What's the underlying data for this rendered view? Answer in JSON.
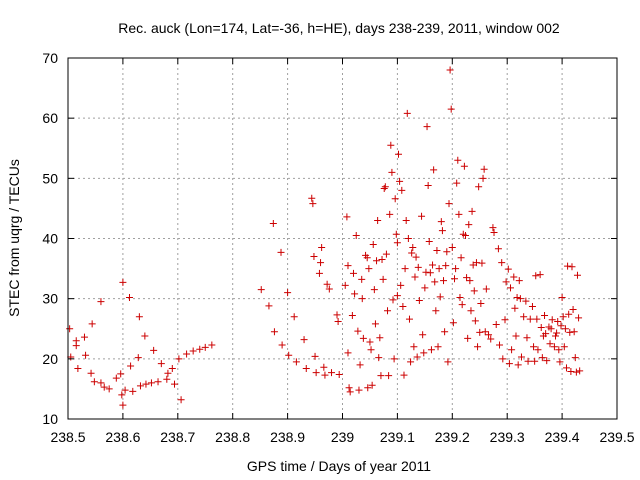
{
  "chart_data": {
    "type": "scatter",
    "title": "Rec. auck (Lon=174, Lat=-36, h=HE), days 238-239, 2011, window 002",
    "xlabel": "GPS time / Days of year 2011",
    "ylabel": "STEC from uqrg / TECUs",
    "xlim": [
      238.5,
      239.5
    ],
    "ylim": [
      10,
      70
    ],
    "xticks": [
      238.5,
      238.6,
      238.7,
      238.8,
      238.9,
      239,
      239.1,
      239.2,
      239.3,
      239.4,
      239.5
    ],
    "xtick_labels": [
      "238.5",
      "238.6",
      "238.7",
      "238.8",
      "238.9",
      "239",
      "239.1",
      "239.2",
      "239.3",
      "239.4",
      "239.5"
    ],
    "yticks": [
      10,
      20,
      30,
      40,
      50,
      60,
      70
    ],
    "ytick_labels": [
      "10",
      "20",
      "30",
      "40",
      "50",
      "60",
      "70"
    ],
    "grid": true,
    "marker": "+",
    "color": "#cc0000",
    "points": [
      [
        238.503,
        25.0
      ],
      [
        238.505,
        20.3
      ],
      [
        238.515,
        23.0
      ],
      [
        238.515,
        22.2
      ],
      [
        238.518,
        18.4
      ],
      [
        238.53,
        23.6
      ],
      [
        238.532,
        20.6
      ],
      [
        238.542,
        17.6
      ],
      [
        238.544,
        25.8
      ],
      [
        238.548,
        16.2
      ],
      [
        238.56,
        29.5
      ],
      [
        238.56,
        16.0
      ],
      [
        238.566,
        15.3
      ],
      [
        238.575,
        15.0
      ],
      [
        238.588,
        16.8
      ],
      [
        238.596,
        17.5
      ],
      [
        238.598,
        14.0
      ],
      [
        238.6,
        32.7
      ],
      [
        238.6,
        12.3
      ],
      [
        238.604,
        14.8
      ],
      [
        238.612,
        30.2
      ],
      [
        238.614,
        18.8
      ],
      [
        238.618,
        14.6
      ],
      [
        238.628,
        20.2
      ],
      [
        238.63,
        27.0
      ],
      [
        238.632,
        15.5
      ],
      [
        238.64,
        23.8
      ],
      [
        238.642,
        15.8
      ],
      [
        238.652,
        16.0
      ],
      [
        238.656,
        21.4
      ],
      [
        238.664,
        16.2
      ],
      [
        238.67,
        19.2
      ],
      [
        238.68,
        16.6
      ],
      [
        238.682,
        17.6
      ],
      [
        238.69,
        18.4
      ],
      [
        238.694,
        15.8
      ],
      [
        238.702,
        20.0
      ],
      [
        238.706,
        13.2
      ],
      [
        238.716,
        20.8
      ],
      [
        238.728,
        21.3
      ],
      [
        238.74,
        21.6
      ],
      [
        238.75,
        21.9
      ],
      [
        238.762,
        22.3
      ],
      [
        238.852,
        31.5
      ],
      [
        238.866,
        28.8
      ],
      [
        238.874,
        42.5
      ],
      [
        238.876,
        24.5
      ],
      [
        238.888,
        37.7
      ],
      [
        238.89,
        22.3
      ],
      [
        238.9,
        31.0
      ],
      [
        238.902,
        20.6
      ],
      [
        238.912,
        27.0
      ],
      [
        238.916,
        19.5
      ],
      [
        238.93,
        23.2
      ],
      [
        238.934,
        18.4
      ],
      [
        238.944,
        46.7
      ],
      [
        238.946,
        45.8
      ],
      [
        238.948,
        37.0
      ],
      [
        238.95,
        20.4
      ],
      [
        238.952,
        17.7
      ],
      [
        238.958,
        34.2
      ],
      [
        238.96,
        36.0
      ],
      [
        238.962,
        38.5
      ],
      [
        238.966,
        18.6
      ],
      [
        238.968,
        17.3
      ],
      [
        238.972,
        32.4
      ],
      [
        238.976,
        31.6
      ],
      [
        238.98,
        17.7
      ],
      [
        238.99,
        27.3
      ],
      [
        238.992,
        26.2
      ],
      [
        238.994,
        17.4
      ],
      [
        239.005,
        32.2
      ],
      [
        239.008,
        43.6
      ],
      [
        239.01,
        35.5
      ],
      [
        239.01,
        21.0
      ],
      [
        239.012,
        15.2
      ],
      [
        239.014,
        14.5
      ],
      [
        239.018,
        27.2
      ],
      [
        239.02,
        34.2
      ],
      [
        239.022,
        30.8
      ],
      [
        239.025,
        40.5
      ],
      [
        239.028,
        24.6
      ],
      [
        239.03,
        14.8
      ],
      [
        239.032,
        19.0
      ],
      [
        239.035,
        33.2
      ],
      [
        239.036,
        30.0
      ],
      [
        239.038,
        23.4
      ],
      [
        239.042,
        37.2
      ],
      [
        239.045,
        36.8
      ],
      [
        239.046,
        15.2
      ],
      [
        239.048,
        35.0
      ],
      [
        239.05,
        22.8
      ],
      [
        239.052,
        21.5
      ],
      [
        239.054,
        15.6
      ],
      [
        239.056,
        39.0
      ],
      [
        239.058,
        31.5
      ],
      [
        239.06,
        25.8
      ],
      [
        239.062,
        36.3
      ],
      [
        239.064,
        43.0
      ],
      [
        239.066,
        20.2
      ],
      [
        239.068,
        23.5
      ],
      [
        239.07,
        17.2
      ],
      [
        239.072,
        36.5
      ],
      [
        239.074,
        33.2
      ],
      [
        239.076,
        48.3
      ],
      [
        239.078,
        48.6
      ],
      [
        239.08,
        37.4
      ],
      [
        239.082,
        28.0
      ],
      [
        239.084,
        17.2
      ],
      [
        239.086,
        44.0
      ],
      [
        239.088,
        55.5
      ],
      [
        239.09,
        51.0
      ],
      [
        239.092,
        29.8
      ],
      [
        239.094,
        20.0
      ],
      [
        239.096,
        46.6
      ],
      [
        239.098,
        40.7
      ],
      [
        239.1,
        39.3
      ],
      [
        239.1,
        30.5
      ],
      [
        239.102,
        54.0
      ],
      [
        239.104,
        49.5
      ],
      [
        239.106,
        32.2
      ],
      [
        239.108,
        48.0
      ],
      [
        239.11,
        28.7
      ],
      [
        239.112,
        17.3
      ],
      [
        239.114,
        35.0
      ],
      [
        239.116,
        43.0
      ],
      [
        239.118,
        60.8
      ],
      [
        239.12,
        40.0
      ],
      [
        239.122,
        26.6
      ],
      [
        239.124,
        19.5
      ],
      [
        239.126,
        37.6
      ],
      [
        239.128,
        38.5
      ],
      [
        239.13,
        22.0
      ],
      [
        239.132,
        33.6
      ],
      [
        239.134,
        36.9
      ],
      [
        239.136,
        20.3
      ],
      [
        239.138,
        35.2
      ],
      [
        239.14,
        29.7
      ],
      [
        239.144,
        43.7
      ],
      [
        239.146,
        24.0
      ],
      [
        239.148,
        21.0
      ],
      [
        239.15,
        31.8
      ],
      [
        239.152,
        34.4
      ],
      [
        239.154,
        58.6
      ],
      [
        239.156,
        48.8
      ],
      [
        239.158,
        39.5
      ],
      [
        239.16,
        34.3
      ],
      [
        239.162,
        21.5
      ],
      [
        239.164,
        35.6
      ],
      [
        239.166,
        51.4
      ],
      [
        239.168,
        32.8
      ],
      [
        239.17,
        28.0
      ],
      [
        239.172,
        38.0
      ],
      [
        239.174,
        22.0
      ],
      [
        239.176,
        35.0
      ],
      [
        239.178,
        30.3
      ],
      [
        239.18,
        42.8
      ],
      [
        239.182,
        41.3
      ],
      [
        239.184,
        33.0
      ],
      [
        239.186,
        24.5
      ],
      [
        239.188,
        35.5
      ],
      [
        239.19,
        37.8
      ],
      [
        239.192,
        19.5
      ],
      [
        239.194,
        45.8
      ],
      [
        239.196,
        68.0
      ],
      [
        239.198,
        61.5
      ],
      [
        239.2,
        38.5
      ],
      [
        239.202,
        26.0
      ],
      [
        239.204,
        33.3
      ],
      [
        239.206,
        35.0
      ],
      [
        239.208,
        49.2
      ],
      [
        239.21,
        53.0
      ],
      [
        239.212,
        44.0
      ],
      [
        239.214,
        30.2
      ],
      [
        239.216,
        36.8
      ],
      [
        239.218,
        29.0
      ],
      [
        239.22,
        40.7
      ],
      [
        239.222,
        52.0
      ],
      [
        239.224,
        40.5
      ],
      [
        239.226,
        33.5
      ],
      [
        239.228,
        23.4
      ],
      [
        239.23,
        42.3
      ],
      [
        239.232,
        33.0
      ],
      [
        239.234,
        28.0
      ],
      [
        239.236,
        44.5
      ],
      [
        239.238,
        35.6
      ],
      [
        239.24,
        31.3
      ],
      [
        239.242,
        26.3
      ],
      [
        239.244,
        36.0
      ],
      [
        239.246,
        22.0
      ],
      [
        239.248,
        48.6
      ],
      [
        239.25,
        24.4
      ],
      [
        239.252,
        29.2
      ],
      [
        239.254,
        35.9
      ],
      [
        239.256,
        50.0
      ],
      [
        239.258,
        51.5
      ],
      [
        239.26,
        24.5
      ],
      [
        239.262,
        31.6
      ],
      [
        239.266,
        24.0
      ],
      [
        239.27,
        23.3
      ],
      [
        239.274,
        41.8
      ],
      [
        239.276,
        41.0
      ],
      [
        239.28,
        25.7
      ],
      [
        239.284,
        38.3
      ],
      [
        239.286,
        22.3
      ],
      [
        239.29,
        36.0
      ],
      [
        239.292,
        20.0
      ],
      [
        239.296,
        26.5
      ],
      [
        239.298,
        32.8
      ],
      [
        239.302,
        34.9
      ],
      [
        239.304,
        19.2
      ],
      [
        239.306,
        31.8
      ],
      [
        239.308,
        21.5
      ],
      [
        239.312,
        33.6
      ],
      [
        239.314,
        28.4
      ],
      [
        239.316,
        23.8
      ],
      [
        239.318,
        30.2
      ],
      [
        239.32,
        19.0
      ],
      [
        239.322,
        33.0
      ],
      [
        239.324,
        30.0
      ],
      [
        239.326,
        20.3
      ],
      [
        239.33,
        27.0
      ],
      [
        239.334,
        29.6
      ],
      [
        239.336,
        23.5
      ],
      [
        239.338,
        19.6
      ],
      [
        239.342,
        26.6
      ],
      [
        239.346,
        28.7
      ],
      [
        239.348,
        22.0
      ],
      [
        239.35,
        19.6
      ],
      [
        239.352,
        33.8
      ],
      [
        239.354,
        26.6
      ],
      [
        239.356,
        21.5
      ],
      [
        239.36,
        34.0
      ],
      [
        239.362,
        25.2
      ],
      [
        239.364,
        20.2
      ],
      [
        239.366,
        23.8
      ],
      [
        239.368,
        27.2
      ],
      [
        239.37,
        24.2
      ],
      [
        239.372,
        19.7
      ],
      [
        239.376,
        25.3
      ],
      [
        239.378,
        22.5
      ],
      [
        239.38,
        25.0
      ],
      [
        239.382,
        26.5
      ],
      [
        239.386,
        22.0
      ],
      [
        239.388,
        23.8
      ],
      [
        239.39,
        24.3
      ],
      [
        239.392,
        26.2
      ],
      [
        239.394,
        21.5
      ],
      [
        239.396,
        19.5
      ],
      [
        239.398,
        25.5
      ],
      [
        239.4,
        30.2
      ],
      [
        239.402,
        27.0
      ],
      [
        239.404,
        22.0
      ],
      [
        239.406,
        25.0
      ],
      [
        239.408,
        18.5
      ],
      [
        239.41,
        35.4
      ],
      [
        239.412,
        27.4
      ],
      [
        239.414,
        24.4
      ],
      [
        239.416,
        17.9
      ],
      [
        239.418,
        35.3
      ],
      [
        239.42,
        28.2
      ],
      [
        239.422,
        24.5
      ],
      [
        239.424,
        20.2
      ],
      [
        239.426,
        17.8
      ],
      [
        239.428,
        33.9
      ],
      [
        239.43,
        26.8
      ],
      [
        239.432,
        18.0
      ]
    ]
  }
}
